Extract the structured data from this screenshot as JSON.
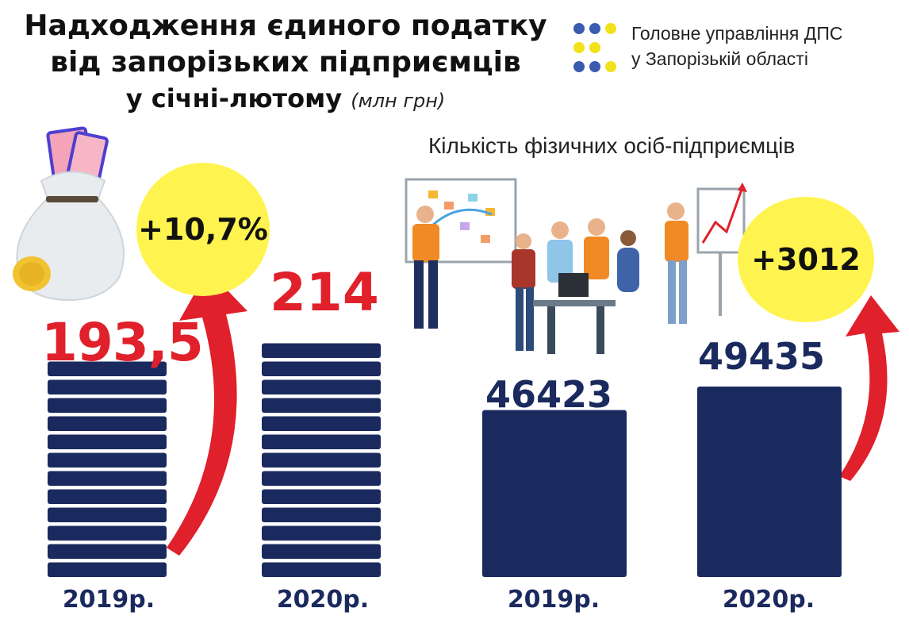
{
  "header": {
    "title_line1": "Надходження єдиного податку",
    "title_line2": "від запорізьких підприємців",
    "title_line3": "у січні-лютому",
    "unit": "(млн грн)"
  },
  "org": {
    "line1": "Головне управління ДПС",
    "line2": "у Запорізькій області"
  },
  "colors": {
    "navy": "#1b2a5e",
    "red": "#e0202a",
    "yellow": "#fff44f"
  },
  "chart_data": [
    {
      "type": "bar",
      "categories": [
        "2019р.",
        "2020р."
      ],
      "values": [
        193.5,
        214
      ],
      "value_labels": [
        "193,5",
        "214"
      ],
      "change_label": "+10,7%",
      "unit": "млн грн"
    },
    {
      "type": "bar",
      "title": "Кількість фізичних осіб-підприємців",
      "categories": [
        "2019р.",
        "2020р."
      ],
      "values": [
        46423,
        49435
      ],
      "value_labels": [
        "46423",
        "49435"
      ],
      "change_label": "+3012"
    }
  ]
}
